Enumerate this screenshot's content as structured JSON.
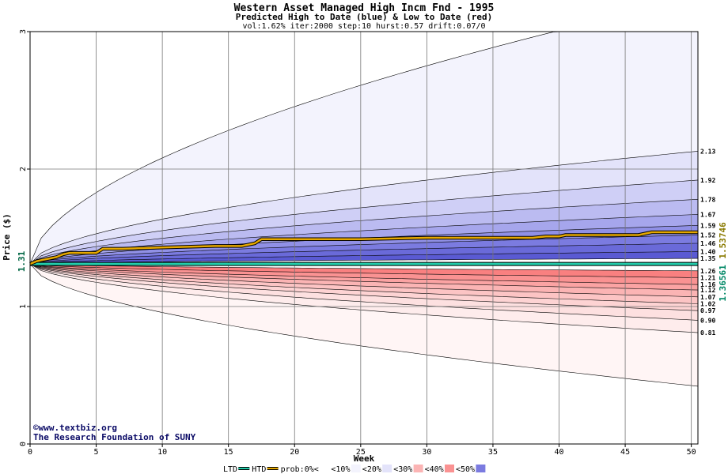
{
  "chart_data": {
    "type": "area",
    "title": "Western Asset Managed High Incm Fnd - 1995",
    "subtitle": "Predicted High to Date (blue) &  Low to Date (red)",
    "params": "vol:1.62% iter:2000 step:10 hurst:0.57 drift:0.07/0",
    "xlabel": "Week",
    "ylabel": "Price ($)",
    "xlim": [
      0,
      50.5
    ],
    "ylim": [
      0,
      3
    ],
    "xticks": [
      "0",
      "5",
      "10",
      "15",
      "20",
      "25",
      "30",
      "35",
      "40",
      "45",
      "50"
    ],
    "yticks": [
      "0",
      "1",
      "2",
      "3"
    ],
    "grid": true,
    "start_price_label": "1.31",
    "start_price": 1.31,
    "right_labels": [
      "2.13",
      "1.92",
      "1.78",
      "1.67",
      "1.59",
      "1.52",
      "1.46",
      "1.40",
      "1.35",
      "1.26",
      "1.21",
      "1.16",
      "1.12",
      "1.07",
      "1.02",
      "0.97",
      "0.90",
      "0.81"
    ],
    "end_value_labels": [
      {
        "text": "1.36561",
        "color": "#008866"
      },
      {
        "text": "1.53746",
        "color": "#8a7a00"
      }
    ],
    "upper_bands_end": [
      3.25,
      2.13,
      1.92,
      1.78,
      1.67,
      1.59,
      1.52,
      1.46,
      1.4,
      1.35
    ],
    "lower_bands_end": [
      1.26,
      1.21,
      1.16,
      1.12,
      1.07,
      1.02,
      0.97,
      0.9,
      0.81,
      0.42
    ],
    "upper_colors": [
      "#f3f3fd",
      "#e3e3fa",
      "#cfcff6",
      "#bbbbf1",
      "#a6a6ec",
      "#9090e6",
      "#7b7be0",
      "#6a6ad9",
      "#5a5ad3"
    ],
    "lower_colors": [
      "#f98080",
      "#fa9292",
      "#fba3a3",
      "#fbb4b4",
      "#fcc4c4",
      "#fdd3d3",
      "#fde0e0",
      "#feecec",
      "#fff5f5"
    ],
    "ltd_series": {
      "name": "LTD",
      "color": "#22ccaa",
      "x": [
        0,
        50.5
      ],
      "y": [
        1.31,
        1.31
      ]
    },
    "htd_series": {
      "name": "HTD",
      "color": "#e6a800",
      "x": [
        0,
        0.5,
        1,
        1.5,
        2,
        2.5,
        3,
        4,
        5,
        5.5,
        7,
        10,
        14,
        16,
        16.5,
        17,
        17.5,
        20,
        25,
        30,
        38,
        39,
        40,
        40.5,
        45,
        46,
        47,
        50.5
      ],
      "y": [
        1.31,
        1.33,
        1.34,
        1.35,
        1.36,
        1.38,
        1.39,
        1.39,
        1.39,
        1.42,
        1.42,
        1.43,
        1.44,
        1.44,
        1.45,
        1.46,
        1.49,
        1.49,
        1.49,
        1.5,
        1.5,
        1.51,
        1.51,
        1.52,
        1.52,
        1.52,
        1.54,
        1.54
      ]
    }
  },
  "credits": {
    "line1": "©www.textbiz.org",
    "line2": "The Research Foundation of SUNY"
  },
  "legend": {
    "items": [
      {
        "label": "LTD",
        "kind": "line",
        "color": "#22ccaa"
      },
      {
        "label": "HTD",
        "kind": "line",
        "color": "#e6a800"
      },
      {
        "label": "prob:0%<",
        "kind": "swatch",
        "color": "#ffffff"
      },
      {
        "label": "<10%",
        "kind": "swatch",
        "color": "#f3f3fd"
      },
      {
        "label": "<20%",
        "kind": "swatch",
        "color": "#e3e3fa"
      },
      {
        "label": "<30%",
        "kind": "swatch",
        "color": "#fbb4b4"
      },
      {
        "label": "<40%",
        "kind": "swatch",
        "color": "#fa9292"
      },
      {
        "label": "<50%",
        "kind": "swatch",
        "color": "#7b7be0"
      }
    ]
  }
}
